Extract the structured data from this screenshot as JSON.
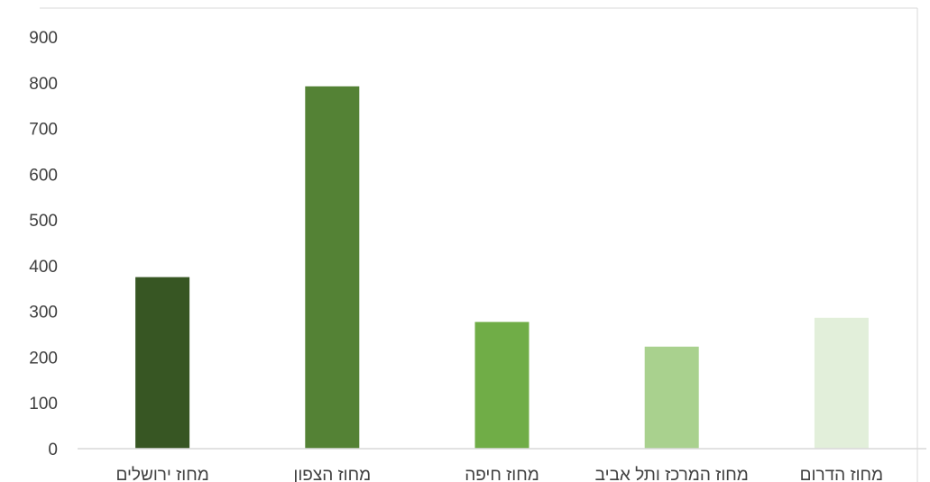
{
  "chart_data": {
    "type": "bar",
    "title": "",
    "xlabel": "",
    "ylabel": "",
    "categories": [
      "מחוז ירושלים",
      "מחוז הצפון",
      "מחוז חיפה",
      "מחוז המרכז ותל אביב",
      "מחוז הדרום"
    ],
    "values": [
      375,
      792,
      277,
      223,
      286
    ],
    "bar_colors": [
      "#375623",
      "#548235",
      "#70ad47",
      "#a9d18e",
      "#e2efda"
    ],
    "ylim": [
      0,
      900
    ],
    "yticks": [
      0,
      100,
      200,
      300,
      400,
      500,
      600,
      700,
      800,
      900
    ],
    "grid": false,
    "legend": "none"
  },
  "colors": {
    "axis_line": "#d9d9d9",
    "frame": "#d9d9d9",
    "text": "#404040"
  }
}
